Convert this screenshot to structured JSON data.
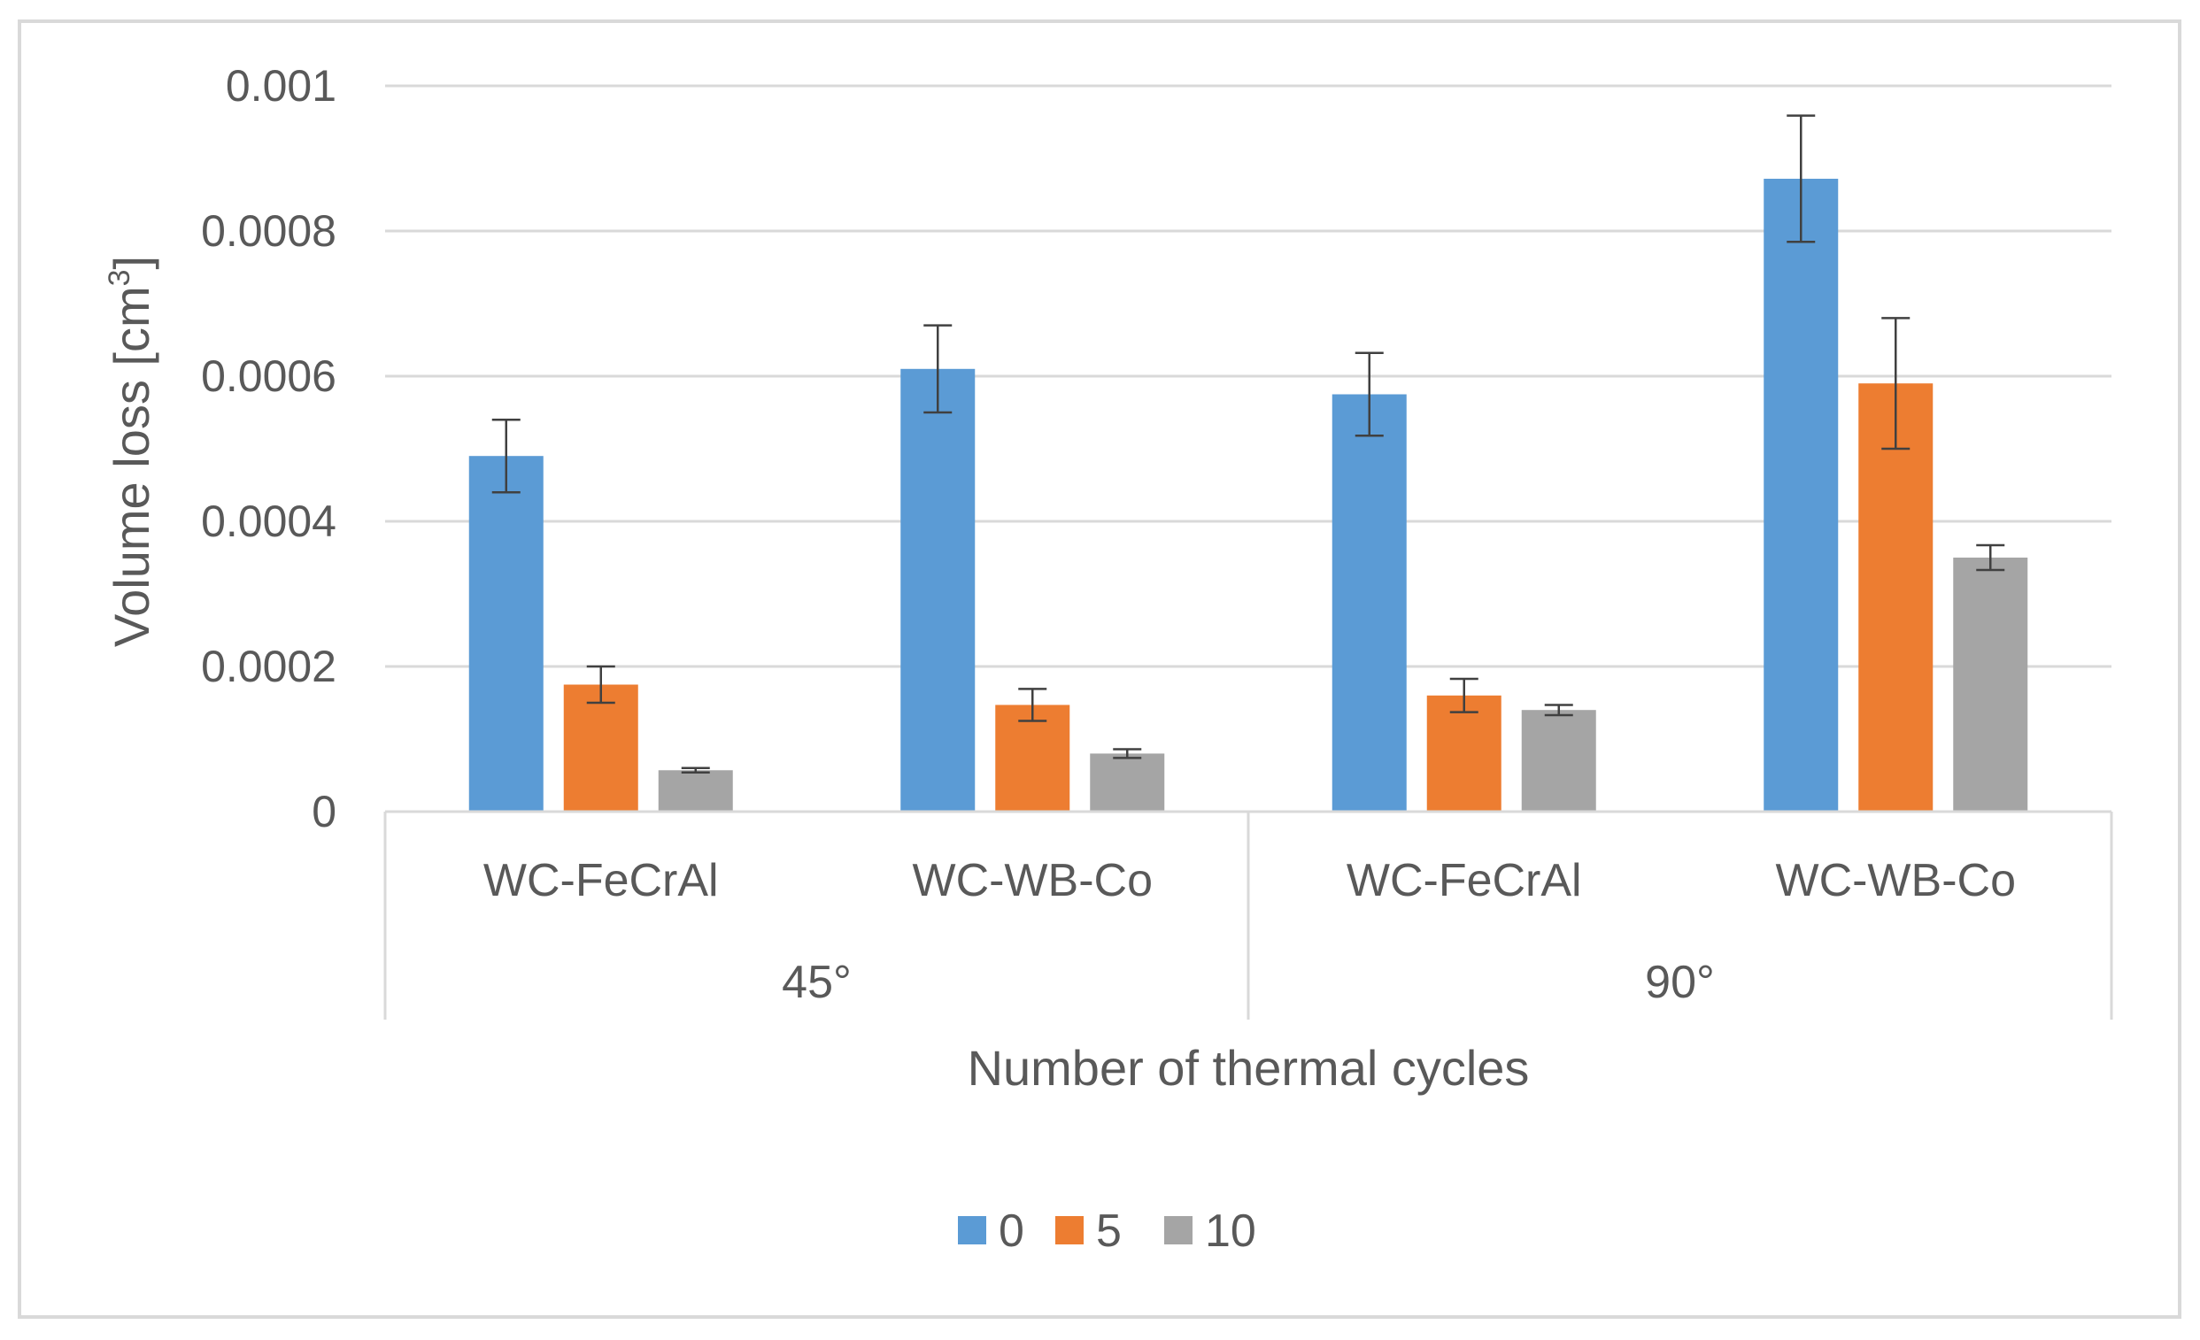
{
  "chart_data": {
    "type": "bar",
    "title": "",
    "xlabel": "Number of thermal cycles",
    "ylabel_text": "Volume loss [cm",
    "ylabel_superscript": "3",
    "ylabel_close": "]",
    "ylim": [
      0,
      0.001
    ],
    "yticks": [
      {
        "value": 0,
        "label": "0"
      },
      {
        "value": 0.0002,
        "label": "0.0002"
      },
      {
        "value": 0.0004,
        "label": "0.0004"
      },
      {
        "value": 0.0006,
        "label": "0.0006"
      },
      {
        "value": 0.0008,
        "label": "0.0008"
      },
      {
        "value": 0.001,
        "label": "0.001"
      }
    ],
    "groups": [
      {
        "label": "45°",
        "categories": [
          "WC-FeCrAl",
          "WC-WB-Co"
        ]
      },
      {
        "label": "90°",
        "categories": [
          "WC-FeCrAl",
          "WC-WB-Co"
        ]
      }
    ],
    "categories": [
      "WC-FeCrAl",
      "WC-WB-Co",
      "WC-FeCrAl",
      "WC-WB-Co"
    ],
    "series": [
      {
        "name": "0",
        "color": "#5B9BD5",
        "values": [
          0.00049,
          0.00061,
          0.000575,
          0.000872
        ],
        "errors": [
          5e-05,
          6e-05,
          5.7e-05,
          8.7e-05
        ]
      },
      {
        "name": "5",
        "color": "#ED7D31",
        "values": [
          0.000175,
          0.000147,
          0.00016,
          0.00059
        ],
        "errors": [
          2.5e-05,
          2.2e-05,
          2.3e-05,
          9e-05
        ]
      },
      {
        "name": "10",
        "color": "#A5A5A5",
        "values": [
          5.7e-05,
          8e-05,
          0.00014,
          0.00035
        ],
        "errors": [
          3e-06,
          6e-06,
          7e-06,
          1.7e-05
        ]
      }
    ],
    "grid": true,
    "legend_position": "bottom"
  }
}
